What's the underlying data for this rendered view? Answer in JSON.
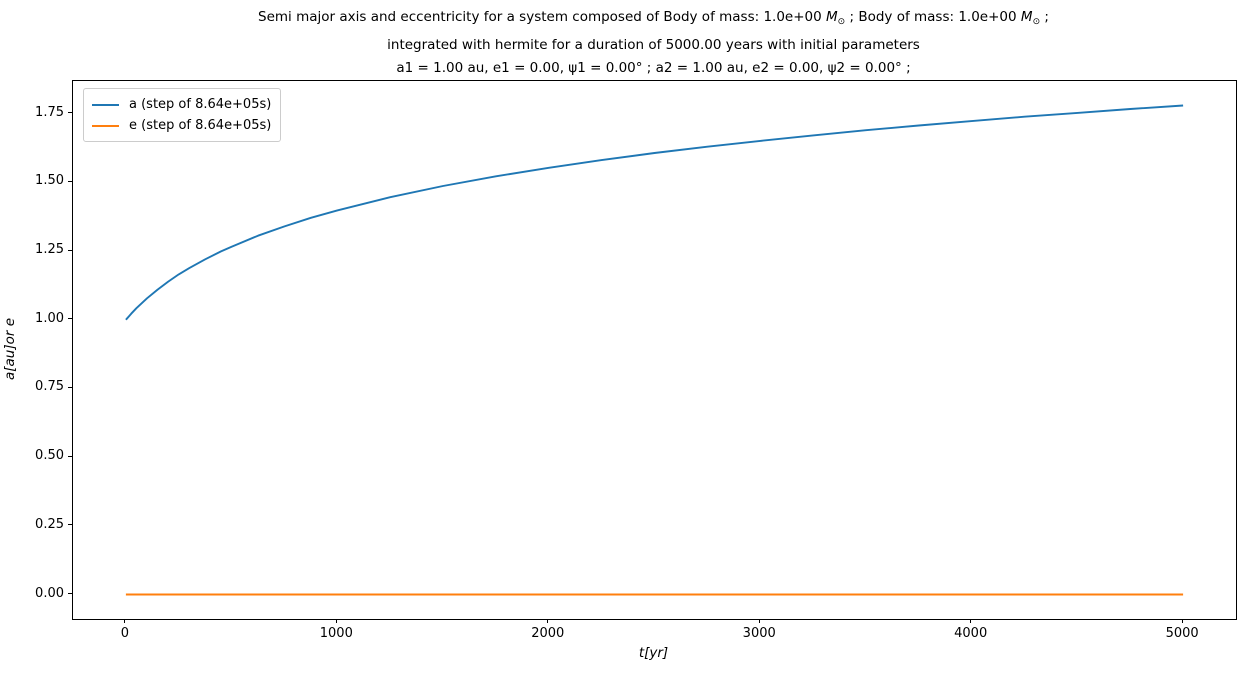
{
  "figure": {
    "title": {
      "line1": {
        "pre": "Semi major axis and eccentricity for a system composed of Body of mass: 1.0e+00 ",
        "m1": "M",
        "sun1": "⊙",
        "mid": " ; Body of mass: 1.0e+00 ",
        "m2": "M",
        "sun2": "⊙",
        "end": " ;"
      },
      "line2": "integrated with hermite for a duration of 5000.00 years with initial parameters",
      "line3": "a1 = 1.00 au, e1 = 0.00, ψ1 = 0.00° ; a2 = 1.00 au, e2 = 0.00, ψ2 = 0.00° ;"
    },
    "xlabel_display": "t[yr]",
    "ylabel_display": "a[au]or e",
    "x_tick_labels": [
      "0",
      "1000",
      "2000",
      "3000",
      "4000",
      "5000"
    ],
    "y_tick_labels": [
      "0.00",
      "0.25",
      "0.50",
      "0.75",
      "1.00",
      "1.25",
      "1.50",
      "1.75"
    ]
  },
  "chart_data": {
    "type": "line",
    "title": "Semi major axis and eccentricity for a system composed of Body of mass: 1.0e+00 M⊙ ; Body of mass: 1.0e+00 M⊙ ; integrated with hermite for a duration of 5000.00 years with initial parameters a1 = 1.00 au, e1 = 0.00, ψ1 = 0.00° ; a2 = 1.00 au, e2 = 0.00, ψ2 = 0.00° ;",
    "xlabel": "t [yr]",
    "ylabel": "a [au] or e",
    "xlim": [
      -250,
      5250
    ],
    "ylim": [
      -0.089,
      1.869
    ],
    "x_ticks": [
      0,
      1000,
      2000,
      3000,
      4000,
      5000
    ],
    "y_ticks": [
      0.0,
      0.25,
      0.5,
      0.75,
      1.0,
      1.25,
      1.5,
      1.75
    ],
    "grid": false,
    "legend_position": "upper left",
    "series": [
      {
        "name": "a (step of 8.64e+05s)",
        "color": "#1f77b4",
        "x": [
          0,
          25,
          50,
          100,
          150,
          200,
          250,
          300,
          375,
          450,
          500,
          625,
          750,
          875,
          1000,
          1250,
          1500,
          1750,
          2000,
          2250,
          2500,
          2750,
          3000,
          3250,
          3500,
          3750,
          4000,
          4250,
          4500,
          4750,
          5000
        ],
        "y": [
          1.0,
          1.022,
          1.042,
          1.078,
          1.11,
          1.139,
          1.165,
          1.188,
          1.22,
          1.249,
          1.266,
          1.306,
          1.34,
          1.371,
          1.398,
          1.446,
          1.487,
          1.522,
          1.553,
          1.581,
          1.607,
          1.63,
          1.651,
          1.671,
          1.69,
          1.707,
          1.723,
          1.739,
          1.753,
          1.767,
          1.78
        ]
      },
      {
        "name": "e (step of 8.64e+05s)",
        "color": "#ff7f0e",
        "x": [
          0,
          5000
        ],
        "y": [
          0.0,
          0.0
        ]
      }
    ]
  }
}
